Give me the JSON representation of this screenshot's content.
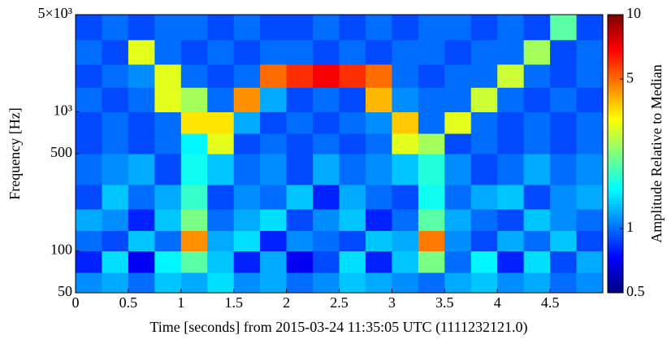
{
  "chart_data": {
    "type": "spectrogram",
    "xlabel": "Time [seconds] from 2015-03-24 11:35:05 UTC (1111232121.0)",
    "ylabel": "Frequency [Hz]",
    "colorbar_label": "Amplitude Relative to Median",
    "xlim": [
      0,
      5
    ],
    "xticks": [
      0,
      0.5,
      1,
      1.5,
      2,
      2.5,
      3,
      3.5,
      4,
      4.5
    ],
    "ylim": [
      50,
      5000
    ],
    "yscale": "log",
    "yticks": [
      50,
      100,
      500,
      {
        "value": 1000,
        "label": "10³"
      },
      {
        "value": 5000,
        "label": "5×10³"
      }
    ],
    "clim": [
      0.5,
      10
    ],
    "cscale": "log",
    "colormap": "jet",
    "cticks": [
      0.5,
      1,
      5,
      10
    ],
    "xbins": [
      0,
      0.25,
      0.5,
      0.75,
      1,
      1.25,
      1.5,
      1.75,
      2,
      2.25,
      2.5,
      2.75,
      3,
      3.25,
      3.5,
      3.75,
      4,
      4.25,
      4.5,
      4.75,
      5
    ],
    "ybins": [
      50,
      70,
      100,
      140,
      200,
      300,
      500,
      700,
      1000,
      1500,
      2200,
      3300,
      5000
    ],
    "values": [
      [
        1.1,
        1.2,
        1.0,
        1.3,
        1.2,
        1.4,
        1.1,
        1.2,
        1.0,
        1.1,
        1.3,
        1.2,
        1.1,
        1.0,
        1.2,
        1.3,
        1.1,
        1.2,
        1.0,
        1.1
      ],
      [
        0.8,
        1.4,
        0.7,
        1.5,
        2.0,
        1.3,
        0.8,
        1.2,
        0.7,
        0.9,
        1.4,
        0.8,
        1.3,
        2.2,
        1.0,
        1.5,
        0.8,
        1.4,
        0.9,
        1.2
      ],
      [
        1.0,
        0.9,
        1.3,
        1.0,
        4.5,
        1.2,
        1.4,
        0.8,
        1.1,
        1.0,
        0.9,
        1.3,
        1.2,
        4.8,
        1.1,
        0.9,
        1.2,
        1.0,
        1.3,
        0.9
      ],
      [
        1.2,
        1.1,
        0.8,
        1.3,
        2.2,
        1.0,
        1.2,
        1.4,
        0.9,
        1.1,
        1.3,
        0.8,
        1.0,
        2.0,
        1.2,
        1.0,
        0.9,
        1.3,
        1.1,
        1.0
      ],
      [
        0.9,
        1.3,
        1.0,
        1.2,
        1.8,
        0.9,
        1.1,
        1.0,
        1.3,
        0.8,
        1.2,
        1.0,
        0.9,
        1.6,
        1.0,
        1.2,
        1.3,
        0.9,
        1.1,
        1.2
      ],
      [
        1.0,
        1.1,
        1.2,
        0.9,
        1.6,
        1.3,
        1.0,
        1.1,
        0.9,
        1.2,
        1.0,
        1.1,
        1.3,
        1.7,
        1.1,
        0.9,
        1.0,
        1.2,
        1.0,
        1.1
      ],
      [
        0.9,
        1.0,
        0.9,
        1.0,
        1.5,
        3.0,
        0.9,
        1.0,
        0.9,
        1.0,
        0.9,
        1.0,
        3.0,
        2.5,
        0.9,
        1.0,
        0.9,
        1.0,
        0.9,
        1.0
      ],
      [
        0.9,
        1.0,
        0.9,
        1.0,
        3.5,
        3.5,
        1.2,
        0.9,
        1.0,
        0.9,
        1.0,
        1.1,
        3.8,
        1.0,
        3.0,
        1.0,
        0.9,
        1.0,
        0.9,
        1.0
      ],
      [
        1.0,
        0.9,
        1.0,
        3.0,
        2.5,
        1.0,
        4.5,
        1.2,
        0.9,
        1.0,
        0.9,
        4.0,
        1.1,
        1.0,
        1.0,
        2.8,
        1.0,
        0.9,
        1.0,
        0.9
      ],
      [
        0.9,
        1.0,
        1.1,
        3.0,
        1.0,
        0.9,
        1.0,
        5.0,
        6.0,
        7.0,
        6.0,
        5.0,
        1.0,
        0.9,
        1.0,
        1.0,
        2.8,
        1.0,
        0.9,
        1.0
      ],
      [
        1.0,
        0.9,
        3.0,
        1.0,
        0.9,
        1.0,
        0.9,
        1.0,
        1.0,
        0.9,
        1.0,
        0.9,
        1.0,
        1.0,
        0.9,
        1.0,
        1.0,
        2.5,
        0.9,
        1.0
      ],
      [
        0.9,
        1.0,
        0.9,
        1.0,
        1.0,
        0.9,
        1.0,
        0.9,
        0.9,
        1.0,
        0.9,
        1.0,
        0.9,
        1.0,
        1.0,
        0.9,
        1.0,
        0.9,
        2.0,
        0.9
      ]
    ]
  }
}
